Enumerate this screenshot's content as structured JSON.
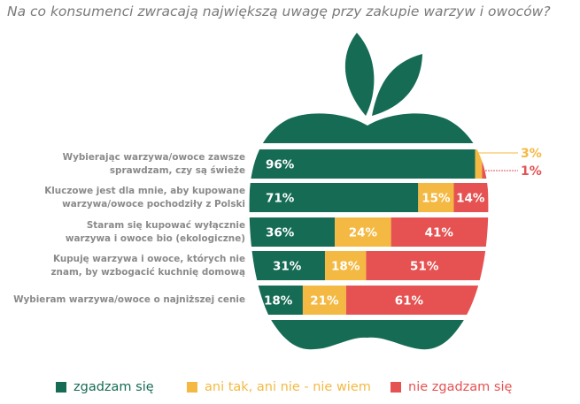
{
  "chart_data": {
    "type": "bar",
    "stacked": true,
    "orientation": "horizontal",
    "title": "Na co konsumenci zwracają największą uwagę przy zakupie warzyw i owoców?",
    "categories": [
      [
        "Wybierając warzywa/owoce zawsze",
        "sprawdzam, czy są świeże"
      ],
      [
        "Kluczowe jest dla mnie, aby kupowane",
        "warzywa/owoce pochodziły z Polski"
      ],
      [
        "Staram się kupować wyłącznie",
        "warzywa i owoce bio (ekologiczne)"
      ],
      [
        "Kupuję warzywa i owoce, których nie",
        "znam, by wzbogacić kuchnię domową"
      ],
      [
        "Wybieram warzywa/owoce o najniższej cenie"
      ]
    ],
    "series": [
      {
        "name": "zgadzam się",
        "color": "#156b54",
        "values": [
          96,
          71,
          36,
          31,
          18
        ]
      },
      {
        "name": "ani tak, ani nie - nie wiem",
        "color": "#f4b942",
        "values": [
          3,
          15,
          24,
          18,
          21
        ]
      },
      {
        "name": "nie zgadzam się",
        "color": "#e65252",
        "values": [
          1,
          14,
          41,
          51,
          61
        ]
      }
    ],
    "value_suffix": "%",
    "legend_position": "bottom",
    "shape": "apple"
  }
}
